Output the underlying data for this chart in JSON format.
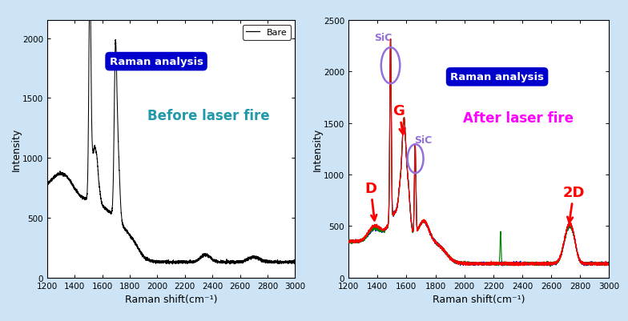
{
  "fig_bg": "#cce4f5",
  "xlim": [
    1200,
    3000
  ],
  "xlabel": "Raman shift(cm⁻¹)",
  "ylabel": "Intensity",
  "left_ylim": [
    0,
    2150
  ],
  "left_yticks": [
    0,
    500,
    1000,
    1500,
    2000
  ],
  "right_ylim": [
    0,
    2500
  ],
  "right_yticks": [
    0,
    500,
    1000,
    1500,
    2000,
    2500
  ],
  "xticks": [
    1200,
    1400,
    1600,
    1800,
    2000,
    2200,
    2400,
    2600,
    2800,
    3000
  ],
  "title_left": "Raman analysis",
  "subtitle_left": "Before laser fire",
  "title_right": "Raman analysis",
  "subtitle_right": "After laser fire",
  "legend_label": "Bare"
}
